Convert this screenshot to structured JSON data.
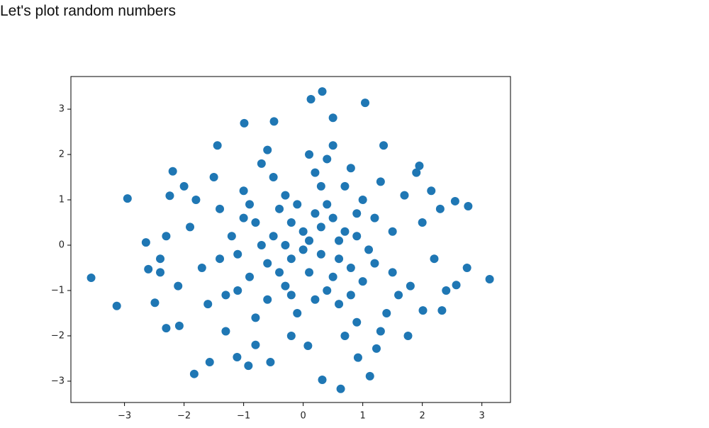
{
  "header": {
    "title": "Let's plot random numbers"
  },
  "chart_data": {
    "type": "scatter",
    "color": "#1f77b4",
    "grid": false,
    "xlim": [
      -3.9,
      3.48
    ],
    "ylim": [
      -3.47,
      3.72
    ],
    "xticks": [
      {
        "value": -3,
        "label": "−3"
      },
      {
        "value": -2,
        "label": "−2"
      },
      {
        "value": -1,
        "label": "−1"
      },
      0,
      1,
      2,
      3
    ],
    "yticks": [
      {
        "value": -3,
        "label": "−3"
      },
      {
        "value": -2,
        "label": "−2"
      },
      {
        "value": -1,
        "label": "−1"
      },
      0,
      1,
      2,
      3
    ],
    "x": [
      -3.56,
      -3.13,
      -2.95,
      3.13,
      2.77,
      0.32,
      0.13,
      1.04,
      0.5,
      -0.99,
      -0.49,
      0.63,
      0.32,
      -1.83,
      -1.57,
      1.12,
      -0.92,
      -0.55,
      -2.19,
      -1.44,
      1.35,
      1.95,
      -2.64,
      -2.49,
      -2.3,
      -2.08,
      2.01,
      2.33,
      1.76,
      1.23,
      2.57,
      2.75,
      2.55,
      2.15,
      -2.24,
      -2.4,
      -2.6,
      0.08,
      -1.11,
      0.92,
      -0.5,
      0.3,
      -0.2,
      0.6,
      -0.8,
      0.1,
      0.9,
      -1.1,
      0.4,
      -0.3,
      1.2,
      -1.4,
      0.7,
      -0.6,
      1.5,
      -1.7,
      0.2,
      -0.1,
      1.8,
      -1.9,
      0.5,
      -0.4,
      0.8,
      -0.9,
      0.0,
      1.0,
      -1.0,
      0.3,
      -0.2,
      0.6,
      -1.3,
      1.3,
      -0.7,
      0.9,
      -1.5,
      1.6,
      2.0,
      -2.1,
      0.1,
      -0.2,
      0.4,
      -0.6,
      0.7,
      -0.3,
      1.1,
      -1.2,
      0.2,
      -0.5,
      0.8,
      -0.8,
      1.4,
      -1.6,
      1.7,
      -1.8,
      2.2,
      -2.3,
      0.0,
      0.5,
      -0.4,
      0.3,
      -0.1,
      1.2,
      -1.1,
      0.6,
      -0.7,
      0.9,
      -0.9,
      1.0,
      -0.2,
      0.4,
      -0.6,
      1.9,
      -1.3,
      0.7,
      2.4,
      -2.0,
      1.5,
      -1.4,
      0.1,
      0.2,
      -0.3,
      0.8,
      -1.0,
      1.3,
      -0.8,
      0.5,
      2.3,
      -2.4
    ],
    "y": [
      -0.72,
      -1.34,
      1.03,
      -0.75,
      0.86,
      3.39,
      3.22,
      3.14,
      2.81,
      2.69,
      2.73,
      -3.17,
      -2.97,
      -2.84,
      -2.58,
      -2.89,
      -2.66,
      -2.58,
      1.63,
      2.2,
      2.2,
      1.75,
      0.06,
      -1.27,
      -1.83,
      -1.78,
      -1.44,
      -1.44,
      -2.0,
      -2.28,
      -0.88,
      -0.5,
      0.97,
      1.2,
      1.09,
      -0.3,
      -0.53,
      -2.22,
      -2.47,
      -2.48,
      0.2,
      0.4,
      -0.3,
      0.1,
      0.5,
      -0.6,
      0.7,
      -0.2,
      -1.0,
      1.1,
      -0.4,
      0.8,
      1.3,
      -1.2,
      0.3,
      -0.5,
      1.6,
      -1.5,
      -0.9,
      0.4,
      0.6,
      0.8,
      -0.5,
      -0.7,
      0.3,
      1.0,
      1.2,
      -0.2,
      0.5,
      -1.3,
      -1.1,
      1.4,
      1.8,
      -1.7,
      1.5,
      -1.1,
      0.5,
      -0.9,
      2.0,
      -2.0,
      0.9,
      -0.4,
      0.3,
      -0.9,
      -0.1,
      0.2,
      -1.2,
      1.5,
      1.7,
      -1.6,
      -1.5,
      -1.3,
      1.1,
      1.0,
      -0.3,
      0.2,
      -0.1,
      -0.7,
      -0.6,
      1.3,
      0.9,
      0.6,
      -1.0,
      -0.3,
      0.0,
      0.2,
      0.9,
      -0.8,
      -1.1,
      1.9,
      2.1,
      1.6,
      -1.9,
      -2.0,
      -1.0,
      1.3,
      -0.6,
      -0.3,
      0.1,
      0.7,
      0.0,
      -1.1,
      0.6,
      -1.9,
      -2.2,
      2.2,
      0.8,
      -0.6
    ]
  }
}
